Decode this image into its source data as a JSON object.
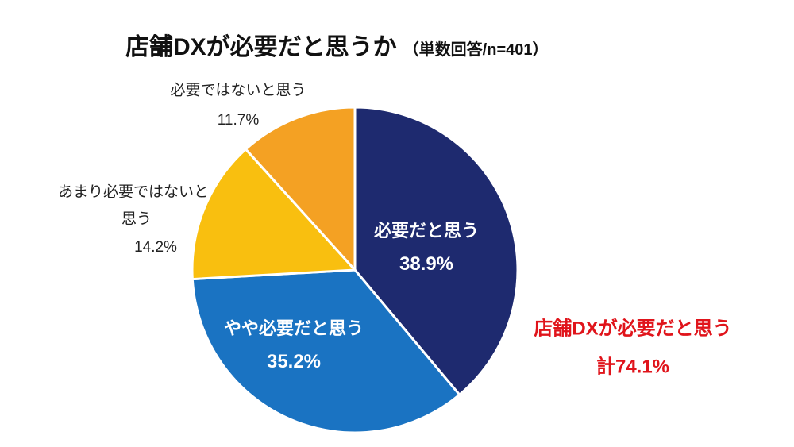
{
  "chart_data": {
    "type": "pie",
    "title": "店舗DXが必要だと思うか",
    "subtitle": "（単数回答/n=401）",
    "start": "top",
    "direction": "clockwise",
    "slices": [
      {
        "label": "必要だと思う",
        "value": 38.9,
        "value_label": "38.9%",
        "color": "#1e2a6f"
      },
      {
        "label": "やや必要だと思う",
        "value": 35.2,
        "value_label": "35.2%",
        "color": "#1a73c2"
      },
      {
        "label": "あまり必要ではないと思う",
        "label_lines": [
          "あまり必要ではないと",
          "思う"
        ],
        "value": 14.2,
        "value_label": "14.2%",
        "color": "#f9bf0f"
      },
      {
        "label": "必要ではないと思う",
        "value": 11.7,
        "value_label": "11.7%",
        "color": "#f4a123"
      }
    ],
    "annotation": {
      "line1": "店舗DXが必要だと思う",
      "line2": "計74.1%",
      "color": "#e0141b"
    }
  }
}
